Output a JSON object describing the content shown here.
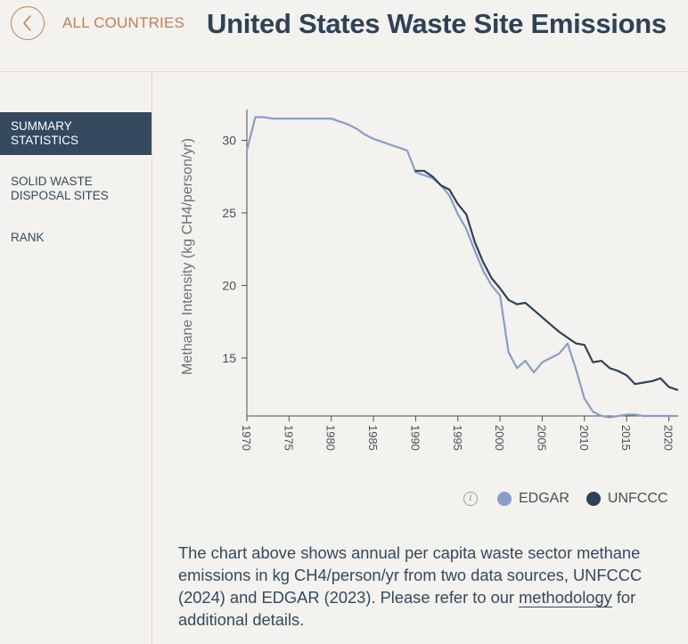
{
  "header": {
    "back_label": "ALL COUNTRIES",
    "title": "United States Waste Site Emissions"
  },
  "sidebar": {
    "items": [
      {
        "label": "SUMMARY STATISTICS",
        "active": true
      },
      {
        "label": "SOLID WASTE DISPOSAL SITES",
        "active": false
      },
      {
        "label": "RANK",
        "active": false
      }
    ]
  },
  "chart_data": {
    "type": "line",
    "ylabel": "Methane Intensity (kg CH4/person/yr)",
    "xlabel": "",
    "xlim": [
      1970,
      2021
    ],
    "ylim": [
      11,
      32
    ],
    "xticks": [
      1970,
      1975,
      1980,
      1985,
      1990,
      1995,
      2000,
      2005,
      2010,
      2015,
      2020
    ],
    "yticks": [
      15,
      20,
      25,
      30
    ],
    "grid": false,
    "series": [
      {
        "name": "EDGAR",
        "color": "#8a9dc9",
        "x": [
          1970,
          1971,
          1972,
          1973,
          1974,
          1975,
          1976,
          1977,
          1978,
          1979,
          1980,
          1981,
          1982,
          1983,
          1984,
          1985,
          1986,
          1987,
          1988,
          1989,
          1990,
          1991,
          1992,
          1993,
          1994,
          1995,
          1996,
          1997,
          1998,
          1999,
          2000,
          2001,
          2002,
          2003,
          2004,
          2005,
          2006,
          2007,
          2008,
          2009,
          2010,
          2011,
          2012,
          2013,
          2014,
          2015,
          2016,
          2017,
          2018,
          2019,
          2020,
          2021
        ],
        "values": [
          29.3,
          31.6,
          31.6,
          31.5,
          31.5,
          31.5,
          31.5,
          31.5,
          31.5,
          31.5,
          31.5,
          31.3,
          31.1,
          30.8,
          30.4,
          30.1,
          29.9,
          29.7,
          29.5,
          29.3,
          27.8,
          27.6,
          27.4,
          26.9,
          26.2,
          24.9,
          23.9,
          22.4,
          21.0,
          20.0,
          19.3,
          15.4,
          14.3,
          14.8,
          14.0,
          14.7,
          15.0,
          15.3,
          16.0,
          14.2,
          12.2,
          11.3,
          11.0,
          10.9,
          11.0,
          11.1,
          11.1,
          11.0,
          11.0,
          11.0,
          11.0,
          11.0
        ]
      },
      {
        "name": "UNFCCC",
        "color": "#2f4158",
        "x": [
          1990,
          1991,
          1992,
          1993,
          1994,
          1995,
          1996,
          1997,
          1998,
          1999,
          2000,
          2001,
          2002,
          2003,
          2004,
          2005,
          2006,
          2007,
          2008,
          2009,
          2010,
          2011,
          2012,
          2013,
          2014,
          2015,
          2016,
          2017,
          2018,
          2019,
          2020,
          2021
        ],
        "values": [
          27.9,
          27.9,
          27.5,
          26.9,
          26.6,
          25.6,
          24.9,
          23.0,
          21.6,
          20.5,
          19.8,
          19.0,
          18.7,
          18.8,
          18.3,
          17.8,
          17.3,
          16.8,
          16.4,
          16.0,
          15.9,
          14.7,
          14.8,
          14.3,
          14.1,
          13.8,
          13.2,
          13.3,
          13.4,
          13.6,
          13.0,
          12.8
        ]
      }
    ]
  },
  "legend": {
    "info_symbol": "i",
    "items": [
      {
        "label": "EDGAR",
        "color": "#8a9dc9"
      },
      {
        "label": "UNFCCC",
        "color": "#2f4158"
      }
    ]
  },
  "description": {
    "text_before": "The chart above shows annual per capita waste sector methane emissions in kg CH4/person/yr from two data sources, UNFCCC (2024) and EDGAR (2023). Please refer to our ",
    "link_text": "methodology",
    "text_after": " for additional details."
  }
}
